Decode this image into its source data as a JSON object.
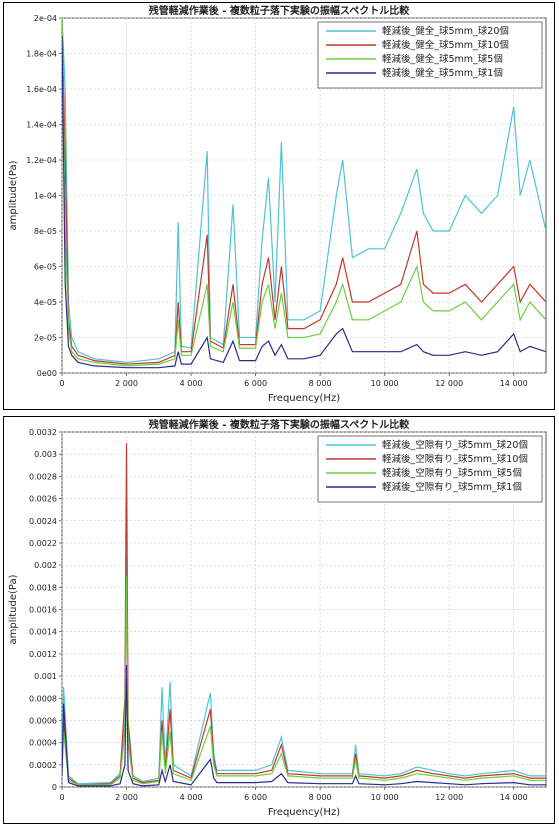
{
  "chart_data": [
    {
      "type": "line",
      "title": "残管軽減作業後 - 複数粒子落下実験の振幅スペクトル比較",
      "xlabel": "Frequency(Hz)",
      "ylabel": "amplitude(Pa)",
      "xlim": [
        0,
        15000
      ],
      "ylim": [
        0,
        0.0002
      ],
      "x_ticks": [
        0,
        2000,
        4000,
        6000,
        8000,
        10000,
        12000,
        14000
      ],
      "x_tick_labels": [
        "0",
        "2 000",
        "4 000",
        "6 000",
        "8 000",
        "10 000",
        "12 000",
        "14 000"
      ],
      "y_ticks": [
        0,
        2e-05,
        4e-05,
        6e-05,
        8e-05,
        0.0001,
        0.00012,
        0.00014,
        0.00016,
        0.00018,
        0.0002
      ],
      "y_tick_labels": [
        "0e00",
        "2e-05",
        "4e-05",
        "6e-05",
        "8e-05",
        "1e-04",
        "1.2e-04",
        "1.4e-04",
        "1.6e-04",
        "1.8e-04",
        "2e-04"
      ],
      "grid": true,
      "legend_position": "top-right",
      "series": [
        {
          "name": "軽減後_健全_球5mm_球20個",
          "color": "#4fc3d4",
          "x": [
            0,
            100,
            200,
            300,
            500,
            1000,
            2000,
            3000,
            3500,
            3600,
            3700,
            4000,
            4500,
            4600,
            5000,
            5300,
            5500,
            6000,
            6200,
            6400,
            6600,
            6800,
            7000,
            7500,
            8000,
            8500,
            8700,
            9000,
            9500,
            10000,
            10500,
            11000,
            11200,
            11500,
            12000,
            12500,
            13000,
            13500,
            14000,
            14200,
            14500,
            15000
          ],
          "values": [
            0.0002,
            0.00016,
            4e-05,
            2e-05,
            1.2e-05,
            8e-06,
            6e-06,
            8e-06,
            1.2e-05,
            8.5e-05,
            1.5e-05,
            1.4e-05,
            0.000125,
            2e-05,
            1.6e-05,
            9.5e-05,
            2e-05,
            2e-05,
            7.5e-05,
            0.00011,
            4e-05,
            0.00013,
            3e-05,
            3e-05,
            3.5e-05,
            0.0001,
            0.00012,
            6.5e-05,
            7e-05,
            7e-05,
            9e-05,
            0.000115,
            9e-05,
            8e-05,
            8e-05,
            0.0001,
            9e-05,
            0.0001,
            0.00015,
            0.0001,
            0.00012,
            8e-05
          ]
        },
        {
          "name": "軽減後_健全_球5mm_球10個",
          "color": "#c0392b",
          "x": [
            0,
            100,
            200,
            300,
            500,
            1000,
            2000,
            3000,
            3500,
            3600,
            3700,
            4000,
            4500,
            4600,
            5000,
            5300,
            5500,
            6000,
            6200,
            6400,
            6600,
            6800,
            7000,
            7500,
            8000,
            8500,
            8700,
            9000,
            9500,
            10000,
            10500,
            11000,
            11200,
            11500,
            12000,
            12500,
            13000,
            13500,
            14000,
            14200,
            14500,
            15000
          ],
          "values": [
            0.0002,
            0.00012,
            3e-05,
            1.5e-05,
            1e-05,
            7e-06,
            5e-06,
            6e-06,
            1e-05,
            4e-05,
            1.2e-05,
            1.2e-05,
            7.8e-05,
            1.8e-05,
            1.4e-05,
            5e-05,
            1.6e-05,
            1.6e-05,
            5e-05,
            6.5e-05,
            3e-05,
            6e-05,
            2.5e-05,
            2.5e-05,
            3e-05,
            5e-05,
            6.5e-05,
            4e-05,
            4e-05,
            4.5e-05,
            5e-05,
            8e-05,
            5e-05,
            4.5e-05,
            4.5e-05,
            5e-05,
            4e-05,
            5e-05,
            6e-05,
            4e-05,
            5e-05,
            4e-05
          ]
        },
        {
          "name": "軽減後_健全_球5mm_球5個",
          "color": "#6bcf3e",
          "x": [
            0,
            100,
            200,
            300,
            500,
            1000,
            2000,
            3000,
            3500,
            3600,
            3700,
            4000,
            4500,
            4600,
            5000,
            5300,
            5500,
            6000,
            6200,
            6400,
            6600,
            6800,
            7000,
            7500,
            8000,
            8500,
            8700,
            9000,
            9500,
            10000,
            10500,
            11000,
            11200,
            11500,
            12000,
            12500,
            13000,
            13500,
            14000,
            14200,
            14500,
            15000
          ],
          "values": [
            0.0002,
            8e-05,
            2.5e-05,
            1.2e-05,
            8e-06,
            6e-06,
            4e-06,
            5e-06,
            8e-06,
            3e-05,
            1e-05,
            1e-05,
            5e-05,
            1.5e-05,
            1.2e-05,
            4e-05,
            1.4e-05,
            1.4e-05,
            4e-05,
            5e-05,
            2.5e-05,
            4.5e-05,
            2e-05,
            2e-05,
            2.2e-05,
            4e-05,
            5e-05,
            3e-05,
            3e-05,
            3.5e-05,
            4e-05,
            6e-05,
            4e-05,
            3.5e-05,
            3.5e-05,
            4e-05,
            3e-05,
            4e-05,
            5e-05,
            3e-05,
            4e-05,
            3e-05
          ]
        },
        {
          "name": "軽減後_健全_球5mm_球1個",
          "color": "#2a2a8c",
          "x": [
            0,
            100,
            200,
            300,
            500,
            1000,
            2000,
            3000,
            3500,
            3600,
            3700,
            4000,
            4500,
            4600,
            5000,
            5300,
            5500,
            6000,
            6200,
            6400,
            6600,
            6800,
            7000,
            7500,
            8000,
            8500,
            8700,
            9000,
            9500,
            10000,
            10500,
            11000,
            11200,
            11500,
            12000,
            12500,
            13000,
            13500,
            14000,
            14200,
            14500,
            15000
          ],
          "values": [
            0.00019,
            5e-05,
            1.5e-05,
            1e-05,
            6e-06,
            4e-06,
            3e-06,
            3e-06,
            4e-06,
            1.2e-05,
            5e-06,
            5e-06,
            2e-05,
            8e-06,
            6e-06,
            1.8e-05,
            7e-06,
            7e-06,
            1.5e-05,
            1.8e-05,
            1e-05,
            1.6e-05,
            8e-06,
            8e-06,
            1e-05,
            2.2e-05,
            2.5e-05,
            1.2e-05,
            1.2e-05,
            1.2e-05,
            1.2e-05,
            1.6e-05,
            1.2e-05,
            1e-05,
            1e-05,
            1.2e-05,
            1e-05,
            1.2e-05,
            2.2e-05,
            1.2e-05,
            1.5e-05,
            1.2e-05
          ]
        }
      ]
    },
    {
      "type": "line",
      "title": "残管軽減作業後 - 複数粒子落下実験の振幅スペクトル比較",
      "xlabel": "Frequency(Hz)",
      "ylabel": "amplitude(Pa)",
      "xlim": [
        0,
        15000
      ],
      "ylim": [
        0,
        0.0032
      ],
      "x_ticks": [
        0,
        2000,
        4000,
        6000,
        8000,
        10000,
        12000,
        14000
      ],
      "x_tick_labels": [
        "0",
        "2 000",
        "4 000",
        "6 000",
        "8 000",
        "10 000",
        "12 000",
        "14 000"
      ],
      "y_ticks": [
        0,
        0.0002,
        0.0004,
        0.0006,
        0.0008,
        0.001,
        0.0012,
        0.0014,
        0.0016,
        0.0018,
        0.002,
        0.0022,
        0.0024,
        0.0026,
        0.0028,
        0.003,
        0.0032
      ],
      "y_tick_labels": [
        "0",
        "0.0002",
        "0.0004",
        "0.0006",
        "0.0008",
        "0.001",
        "0.0012",
        "0.0014",
        "0.0016",
        "0.0018",
        "0.002",
        "0.0022",
        "0.0024",
        "0.0026",
        "0.0028",
        "0.003",
        "0.0032"
      ],
      "grid": true,
      "legend_position": "top-right",
      "series": [
        {
          "name": "軽減後_空隙有り_球5mm_球20個",
          "color": "#4fc3d4",
          "x": [
            0,
            50,
            200,
            500,
            1500,
            1800,
            1950,
            2000,
            2050,
            2200,
            2500,
            3000,
            3100,
            3200,
            3350,
            3450,
            4000,
            4600,
            4700,
            4800,
            5500,
            6000,
            6500,
            6800,
            7000,
            8000,
            9000,
            9100,
            9200,
            10000,
            10500,
            11000,
            11500,
            12000,
            12500,
            13000,
            14000,
            14500,
            15000
          ],
          "values": [
            0.0003,
            0.0009,
            0.0001,
            3e-05,
            4e-05,
            0.00012,
            0.0006,
            0.0021,
            0.0005,
            0.0001,
            5e-05,
            8e-05,
            0.0009,
            0.0002,
            0.00095,
            0.0002,
            0.0001,
            0.00085,
            0.0003,
            0.00015,
            0.00015,
            0.00015,
            0.0002,
            0.00045,
            0.00015,
            0.00012,
            0.00012,
            0.00038,
            0.00012,
            0.0001,
            0.00012,
            0.00018,
            0.00015,
            0.00012,
            0.0001,
            0.00012,
            0.00015,
            0.0001,
            0.0001
          ]
        },
        {
          "name": "軽減後_空隙有り_球5mm_球10個",
          "color": "#c0392b",
          "x": [
            0,
            50,
            200,
            500,
            1500,
            1800,
            1950,
            2000,
            2050,
            2200,
            2500,
            3000,
            3100,
            3200,
            3350,
            3450,
            4000,
            4600,
            4700,
            4800,
            5500,
            6000,
            6500,
            6800,
            7000,
            8000,
            9000,
            9100,
            9200,
            10000,
            10500,
            11000,
            11500,
            12000,
            12500,
            13000,
            14000,
            14500,
            15000
          ],
          "values": [
            0.0002,
            0.0006,
            8e-05,
            2e-05,
            3e-05,
            0.0001,
            0.0008,
            0.0031,
            0.0006,
            8e-05,
            4e-05,
            6e-05,
            0.0006,
            0.00015,
            0.0007,
            0.00015,
            8e-05,
            0.0007,
            0.00025,
            0.00012,
            0.00012,
            0.00012,
            0.00015,
            0.00038,
            0.00012,
            0.0001,
            0.0001,
            0.0003,
            0.0001,
            8e-05,
            0.0001,
            0.00015,
            0.00012,
            0.0001,
            8e-05,
            0.0001,
            0.00012,
            8e-05,
            8e-05
          ]
        },
        {
          "name": "軽減後_空隙有り_球5mm_球5個",
          "color": "#6bcf3e",
          "x": [
            0,
            50,
            200,
            500,
            1500,
            1800,
            1950,
            2000,
            2050,
            2200,
            2500,
            3000,
            3100,
            3200,
            3350,
            3450,
            4000,
            4600,
            4700,
            4800,
            5500,
            6000,
            6500,
            6800,
            7000,
            8000,
            9000,
            9100,
            9200,
            10000,
            10500,
            11000,
            11500,
            12000,
            12500,
            13000,
            14000,
            14500,
            15000
          ],
          "values": [
            0.00015,
            0.0005,
            6e-05,
            2e-05,
            2e-05,
            8e-05,
            0.0005,
            0.0019,
            0.0004,
            6e-05,
            3e-05,
            5e-05,
            0.0005,
            0.00012,
            0.0005,
            0.00012,
            6e-05,
            0.00055,
            0.0002,
            0.0001,
            0.0001,
            0.0001,
            0.00012,
            0.0003,
            0.0001,
            8e-05,
            8e-05,
            0.00025,
            8e-05,
            6e-05,
            8e-05,
            0.00012,
            0.0001,
            8e-05,
            6e-05,
            8e-05,
            0.0001,
            6e-05,
            6e-05
          ]
        },
        {
          "name": "軽減後_空隙有り_球5mm_球1個",
          "color": "#2a2a8c",
          "x": [
            0,
            50,
            200,
            500,
            1500,
            1800,
            1950,
            2000,
            2050,
            2200,
            2500,
            3000,
            3100,
            3200,
            3350,
            3450,
            4000,
            4600,
            4700,
            4800,
            5500,
            6000,
            6500,
            6800,
            7000,
            8000,
            9000,
            9100,
            9200,
            10000,
            10500,
            11000,
            11500,
            12000,
            12500,
            13000,
            14000,
            14500,
            15000
          ],
          "values": [
            0.0001,
            0.00075,
            4e-05,
            1e-05,
            1e-05,
            3e-05,
            0.0002,
            0.0011,
            0.00015,
            3e-05,
            1e-05,
            2e-05,
            0.00015,
            5e-05,
            0.0002,
            5e-05,
            2e-05,
            0.00025,
            8e-05,
            4e-05,
            4e-05,
            4e-05,
            5e-05,
            0.00012,
            4e-05,
            3e-05,
            3e-05,
            0.0001,
            3e-05,
            2e-05,
            3e-05,
            5e-05,
            4e-05,
            3e-05,
            2e-05,
            3e-05,
            4e-05,
            2e-05,
            2e-05
          ]
        }
      ]
    }
  ]
}
